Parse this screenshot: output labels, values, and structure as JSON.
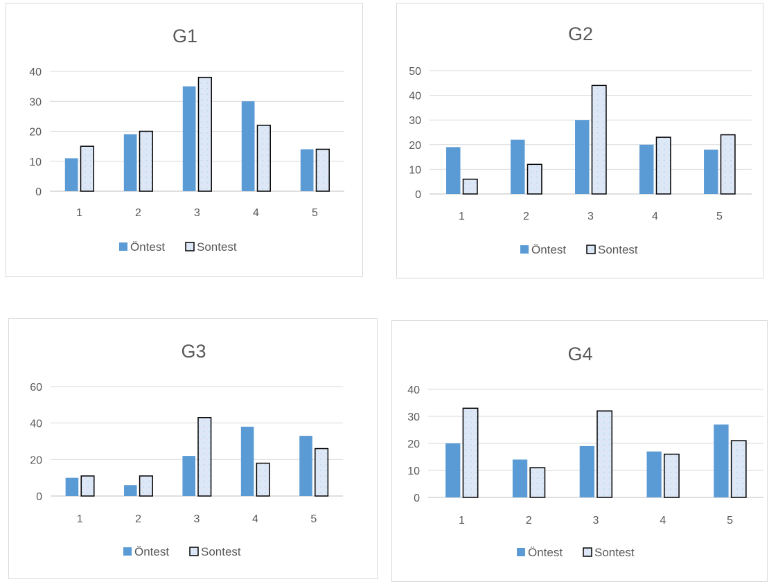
{
  "charts": [
    {
      "title": "G1",
      "chart_data": {
        "type": "bar",
        "title": "G1",
        "categories": [
          "1",
          "2",
          "3",
          "4",
          "5"
        ],
        "series": [
          {
            "name": "Öntest",
            "values": [
              11,
              19,
              35,
              30,
              14
            ]
          },
          {
            "name": "Sontest",
            "values": [
              15,
              20,
              38,
              22,
              14
            ]
          }
        ],
        "ylim": [
          0,
          40
        ],
        "yticks": [
          0,
          10,
          20,
          30,
          40
        ],
        "grid": true,
        "legend": "bottom"
      }
    },
    {
      "title": "G2",
      "chart_data": {
        "type": "bar",
        "title": "G2",
        "categories": [
          "1",
          "2",
          "3",
          "4",
          "5"
        ],
        "series": [
          {
            "name": "Öntest",
            "values": [
              19,
              22,
              30,
              20,
              18
            ]
          },
          {
            "name": "Sontest",
            "values": [
              6,
              12,
              44,
              23,
              24
            ]
          }
        ],
        "ylim": [
          0,
          50
        ],
        "yticks": [
          0,
          10,
          20,
          30,
          40,
          50
        ],
        "grid": true,
        "legend": "bottom"
      }
    },
    {
      "title": "G3",
      "chart_data": {
        "type": "bar",
        "title": "G3",
        "categories": [
          "1",
          "2",
          "3",
          "4",
          "5"
        ],
        "series": [
          {
            "name": "Öntest",
            "values": [
              10,
              6,
              22,
              38,
              33
            ]
          },
          {
            "name": "Sontest",
            "values": [
              11,
              11,
              43,
              18,
              26
            ]
          }
        ],
        "ylim": [
          0,
          60
        ],
        "yticks": [
          0,
          20,
          40,
          60
        ],
        "grid": true,
        "legend": "bottom"
      }
    },
    {
      "title": "G4",
      "chart_data": {
        "type": "bar",
        "title": "G4",
        "categories": [
          "1",
          "2",
          "3",
          "4",
          "5"
        ],
        "series": [
          {
            "name": "Öntest",
            "values": [
              20,
              14,
              19,
              17,
              27
            ]
          },
          {
            "name": "Sontest",
            "values": [
              33,
              11,
              32,
              16,
              21
            ]
          }
        ],
        "ylim": [
          0,
          40
        ],
        "yticks": [
          0,
          10,
          20,
          30,
          40
        ],
        "grid": true,
        "legend": "bottom"
      }
    }
  ],
  "colors": {
    "ontest_fill": "#5b9bd5",
    "sontest_fill": "#dde8f7",
    "sontest_stroke": "#000000"
  }
}
